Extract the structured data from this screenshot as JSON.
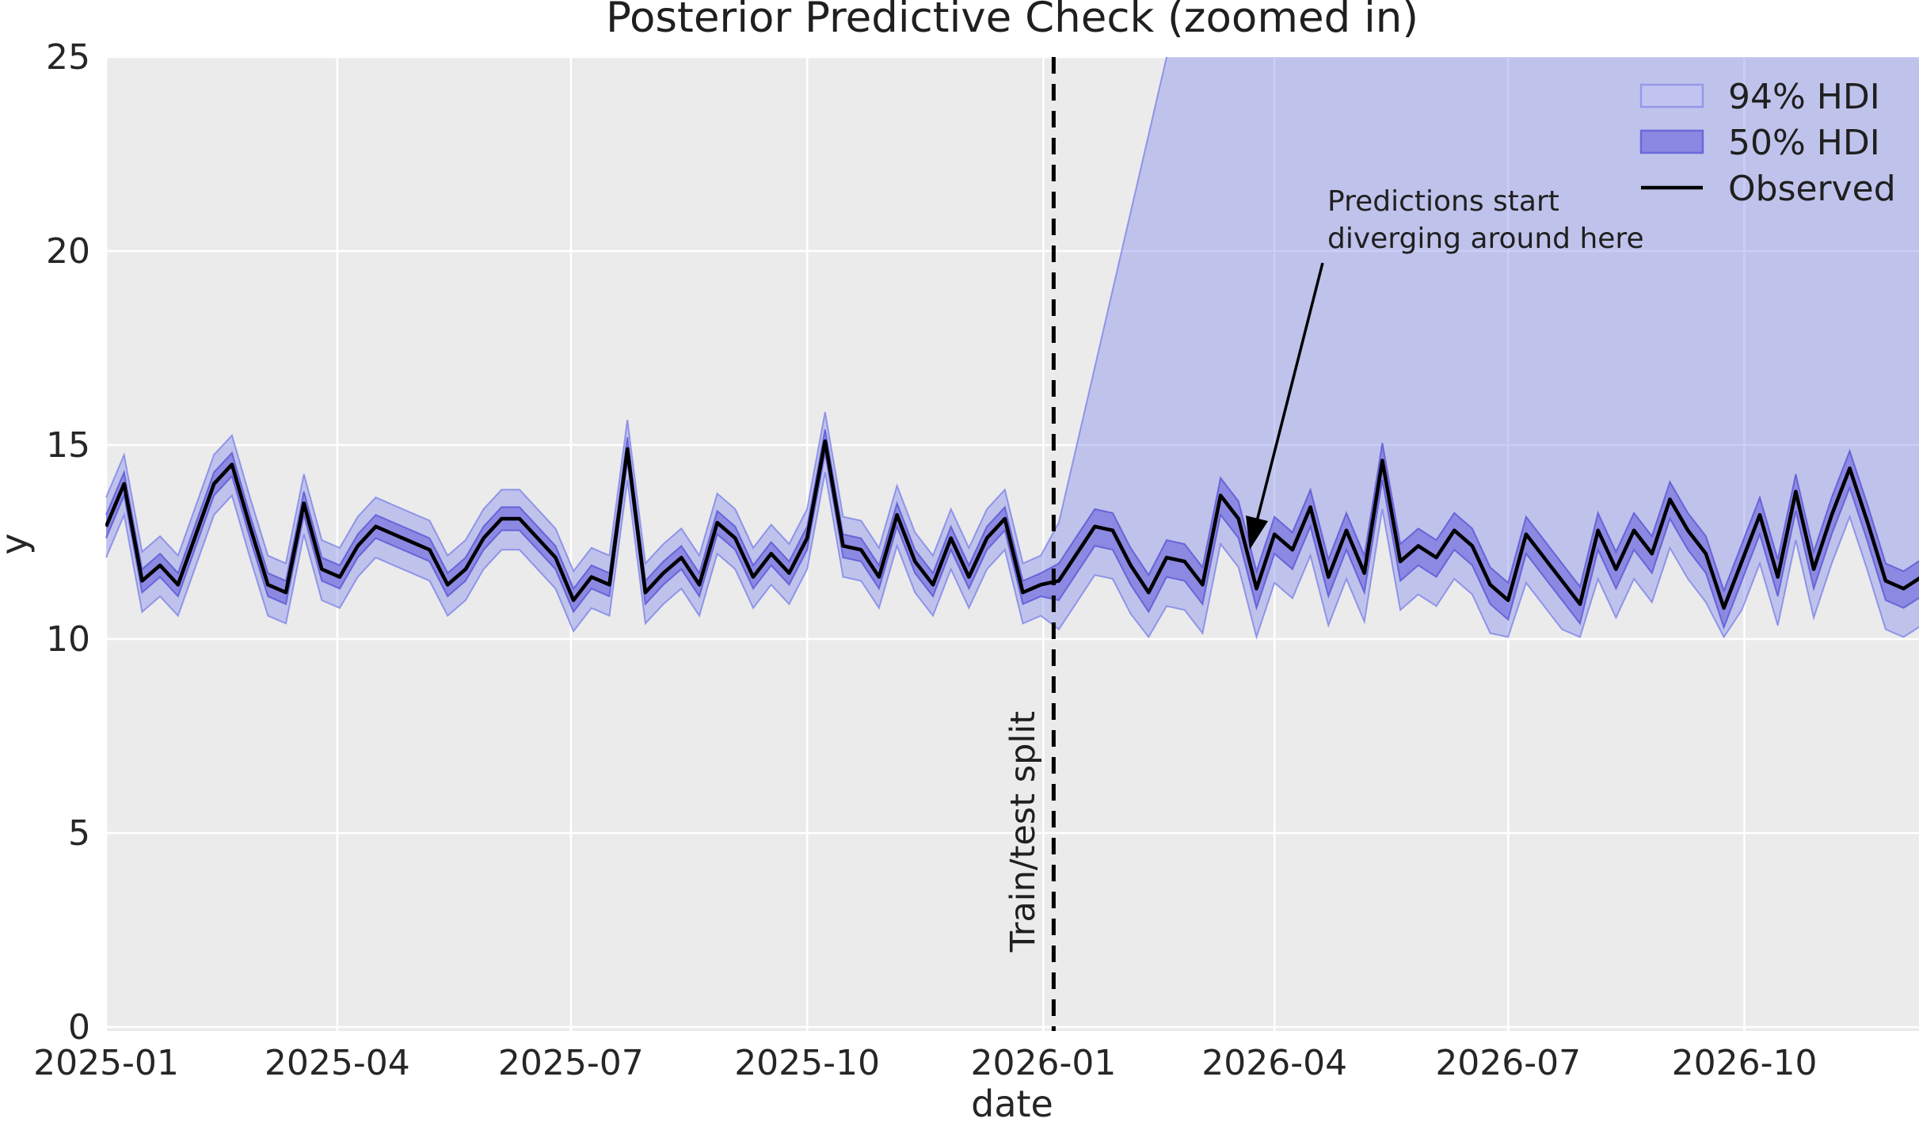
{
  "figure": {
    "title": "Posterior Predictive Check (zoomed in)",
    "xlabel": "date",
    "ylabel": "y",
    "colors": {
      "figure_bg": "#ffffff",
      "plot_bg": "#ebebeb",
      "grid": "#ffffff",
      "text": "#262626",
      "observed_line": "#000000",
      "split_line": "#000000",
      "hdi94_fill": "rgba(138,146,234,0.45)",
      "hdi94_edge": "rgba(120,125,232,0.75)",
      "hdi50_fill": "rgba(107,102,221,0.62)",
      "hdi50_edge": "rgba(85,80,212,0.75)"
    }
  },
  "legend": {
    "items": [
      {
        "label": "94% HDI",
        "type": "patch",
        "fill": "#c2c4f0",
        "edge": "#9598e9"
      },
      {
        "label": "50% HDI",
        "type": "patch",
        "fill": "#8a88e3",
        "edge": "#6b68d9"
      },
      {
        "label": "Observed",
        "type": "line",
        "color": "#000000"
      }
    ]
  },
  "annotation": {
    "line1": "Predictions start",
    "line2": "diverging around here",
    "arrow_points_to": {
      "date": "2026-03-25",
      "y": 11.3
    }
  },
  "split": {
    "label": "Train/test split",
    "date": "2026-01-05",
    "day_offset": 369
  },
  "chart_data": {
    "type": "line",
    "title": "Posterior Predictive Check (zoomed in)",
    "xlabel": "date",
    "ylabel": "y",
    "ylim": [
      0,
      25
    ],
    "grid": true,
    "legend_position": "upper right",
    "x_start_date": "2025-01-01",
    "x_step_days": 7,
    "x_domain_days": [
      0,
      706
    ],
    "train_test_split_index": 53,
    "xticks": [
      {
        "label": "2025-01",
        "day": 0
      },
      {
        "label": "2025-04",
        "day": 90
      },
      {
        "label": "2025-07",
        "day": 181
      },
      {
        "label": "2025-10",
        "day": 273
      },
      {
        "label": "2026-01",
        "day": 365
      },
      {
        "label": "2026-04",
        "day": 455
      },
      {
        "label": "2026-07",
        "day": 546
      },
      {
        "label": "2026-10",
        "day": 638
      }
    ],
    "yticks": [
      {
        "label": "0",
        "value": 0
      },
      {
        "label": "5",
        "value": 5
      },
      {
        "label": "10",
        "value": 10
      },
      {
        "label": "15",
        "value": 15
      },
      {
        "label": "20",
        "value": 20
      },
      {
        "label": "25",
        "value": 25
      }
    ],
    "series": [
      {
        "name": "Observed",
        "values": [
          12.9,
          14.0,
          11.5,
          11.9,
          11.4,
          12.7,
          14.0,
          14.5,
          12.9,
          11.4,
          11.2,
          13.5,
          11.8,
          11.6,
          12.4,
          12.9,
          12.7,
          12.5,
          12.3,
          11.4,
          11.8,
          12.6,
          13.1,
          13.1,
          12.6,
          12.1,
          11.0,
          11.6,
          11.4,
          14.9,
          11.2,
          11.7,
          12.1,
          11.4,
          13.0,
          12.6,
          11.6,
          12.2,
          11.7,
          12.6,
          15.1,
          12.4,
          12.3,
          11.6,
          13.2,
          12.0,
          11.4,
          12.6,
          11.6,
          12.6,
          13.1,
          11.2,
          11.4,
          11.5,
          12.2,
          12.9,
          12.8,
          11.9,
          11.2,
          12.1,
          12.0,
          11.4,
          13.7,
          13.1,
          11.3,
          12.7,
          12.3,
          13.4,
          11.6,
          12.8,
          11.7,
          14.6,
          12.0,
          12.4,
          12.1,
          12.8,
          12.4,
          11.4,
          11.0,
          12.7,
          12.1,
          11.5,
          10.9,
          12.8,
          11.8,
          12.8,
          12.2,
          13.6,
          12.8,
          12.2,
          10.8,
          12.0,
          13.2,
          11.6,
          13.8,
          11.8,
          13.2,
          14.4,
          13.0,
          11.5,
          11.3,
          11.6
        ]
      },
      {
        "name": "50% HDI upper",
        "values": [
          13.2,
          14.3,
          11.8,
          12.2,
          11.7,
          13.0,
          14.3,
          14.8,
          13.2,
          11.7,
          11.5,
          13.8,
          12.1,
          11.9,
          12.7,
          13.2,
          13.0,
          12.8,
          12.6,
          11.7,
          12.1,
          12.9,
          13.4,
          13.4,
          12.9,
          12.4,
          11.3,
          11.9,
          11.7,
          15.2,
          11.5,
          12.0,
          12.4,
          11.7,
          13.3,
          12.9,
          11.9,
          12.5,
          12.0,
          12.9,
          15.4,
          12.7,
          12.6,
          11.9,
          13.5,
          12.3,
          11.7,
          12.9,
          11.9,
          12.9,
          13.4,
          11.5,
          11.7,
          11.95,
          12.65,
          13.35,
          13.25,
          12.35,
          11.65,
          12.55,
          12.45,
          11.85,
          14.15,
          13.55,
          11.75,
          13.15,
          12.75,
          13.85,
          12.05,
          13.25,
          12.15,
          15.05,
          12.45,
          12.85,
          12.55,
          13.25,
          12.85,
          11.85,
          11.45,
          13.15,
          12.55,
          11.95,
          11.35,
          13.25,
          12.25,
          13.25,
          12.65,
          14.05,
          13.25,
          12.65,
          11.25,
          12.45,
          13.65,
          12.05,
          14.25,
          12.25,
          13.65,
          14.85,
          13.45,
          11.95,
          11.75,
          12.05
        ]
      },
      {
        "name": "50% HDI lower",
        "values": [
          12.6,
          13.7,
          11.2,
          11.6,
          11.1,
          12.4,
          13.7,
          14.2,
          12.6,
          11.1,
          10.9,
          13.2,
          11.5,
          11.3,
          12.1,
          12.6,
          12.4,
          12.2,
          12.0,
          11.1,
          11.5,
          12.3,
          12.8,
          12.8,
          12.3,
          11.8,
          10.7,
          11.3,
          11.1,
          14.6,
          10.9,
          11.4,
          11.8,
          11.1,
          12.7,
          12.3,
          11.3,
          11.9,
          11.4,
          12.3,
          14.8,
          12.1,
          12.0,
          11.3,
          12.9,
          11.7,
          11.1,
          12.3,
          11.3,
          12.3,
          12.8,
          10.9,
          11.1,
          11.0,
          11.7,
          12.4,
          12.3,
          11.4,
          10.7,
          11.6,
          11.5,
          10.9,
          13.2,
          12.6,
          10.8,
          12.2,
          11.8,
          12.9,
          11.1,
          12.3,
          11.2,
          14.1,
          11.5,
          11.9,
          11.6,
          12.3,
          11.9,
          10.9,
          10.5,
          12.2,
          11.6,
          11.0,
          10.4,
          12.3,
          11.3,
          12.3,
          11.7,
          13.1,
          12.3,
          11.7,
          10.3,
          11.5,
          12.7,
          11.1,
          13.3,
          11.3,
          12.7,
          13.9,
          12.5,
          11.0,
          10.8,
          11.1
        ]
      },
      {
        "name": "94% HDI upper",
        "values": [
          13.65,
          14.75,
          12.25,
          12.65,
          12.15,
          13.45,
          14.75,
          15.25,
          13.65,
          12.15,
          11.95,
          14.25,
          12.55,
          12.35,
          13.15,
          13.65,
          13.45,
          13.25,
          13.05,
          12.15,
          12.55,
          13.35,
          13.85,
          13.85,
          13.35,
          12.85,
          11.75,
          12.35,
          12.15,
          15.65,
          11.95,
          12.45,
          12.85,
          12.15,
          13.75,
          13.35,
          12.35,
          12.95,
          12.45,
          13.35,
          15.85,
          13.15,
          13.05,
          12.35,
          13.95,
          12.75,
          12.15,
          13.35,
          12.35,
          13.35,
          13.85,
          11.95,
          12.15,
          13.0,
          15.0,
          17.0,
          19.0,
          21.0,
          23.0,
          25.0,
          27.0,
          28.0,
          28.0,
          28.0,
          28.0,
          28.0,
          28.0,
          28.0,
          28.0,
          28.0,
          28.0,
          28.0,
          28.0,
          28.0,
          28.0,
          28.0,
          28.0,
          28.0,
          28.0,
          28.0,
          28.0,
          28.0,
          28.0,
          28.0,
          28.0,
          28.0,
          28.0,
          28.0,
          28.0,
          28.0,
          28.0,
          28.0,
          28.0,
          28.0,
          28.0,
          28.0,
          28.0,
          28.0,
          28.0,
          28.0,
          28.0,
          28.0
        ]
      },
      {
        "name": "94% HDI lower",
        "values": [
          12.1,
          13.2,
          10.7,
          11.1,
          10.6,
          11.9,
          13.2,
          13.7,
          12.1,
          10.6,
          10.4,
          12.7,
          11.0,
          10.8,
          11.6,
          12.1,
          11.9,
          11.7,
          11.5,
          10.6,
          11.0,
          11.8,
          12.3,
          12.3,
          11.8,
          11.3,
          10.2,
          10.8,
          10.6,
          14.1,
          10.4,
          10.9,
          11.3,
          10.6,
          12.2,
          11.8,
          10.8,
          11.4,
          10.9,
          11.8,
          14.3,
          11.6,
          11.5,
          10.8,
          12.4,
          11.2,
          10.6,
          11.8,
          10.8,
          11.8,
          12.3,
          10.4,
          10.6,
          10.25,
          10.95,
          11.65,
          11.55,
          10.65,
          10.05,
          10.85,
          10.75,
          10.15,
          12.45,
          11.85,
          10.05,
          11.45,
          11.05,
          12.15,
          10.35,
          11.55,
          10.45,
          13.35,
          10.75,
          11.15,
          10.85,
          11.55,
          11.15,
          10.15,
          10.05,
          11.45,
          10.85,
          10.25,
          10.05,
          11.55,
          10.55,
          11.55,
          10.95,
          12.35,
          11.55,
          10.95,
          10.05,
          10.75,
          11.95,
          10.35,
          12.55,
          10.55,
          11.95,
          13.15,
          11.75,
          10.25,
          10.05,
          10.35
        ]
      }
    ]
  }
}
